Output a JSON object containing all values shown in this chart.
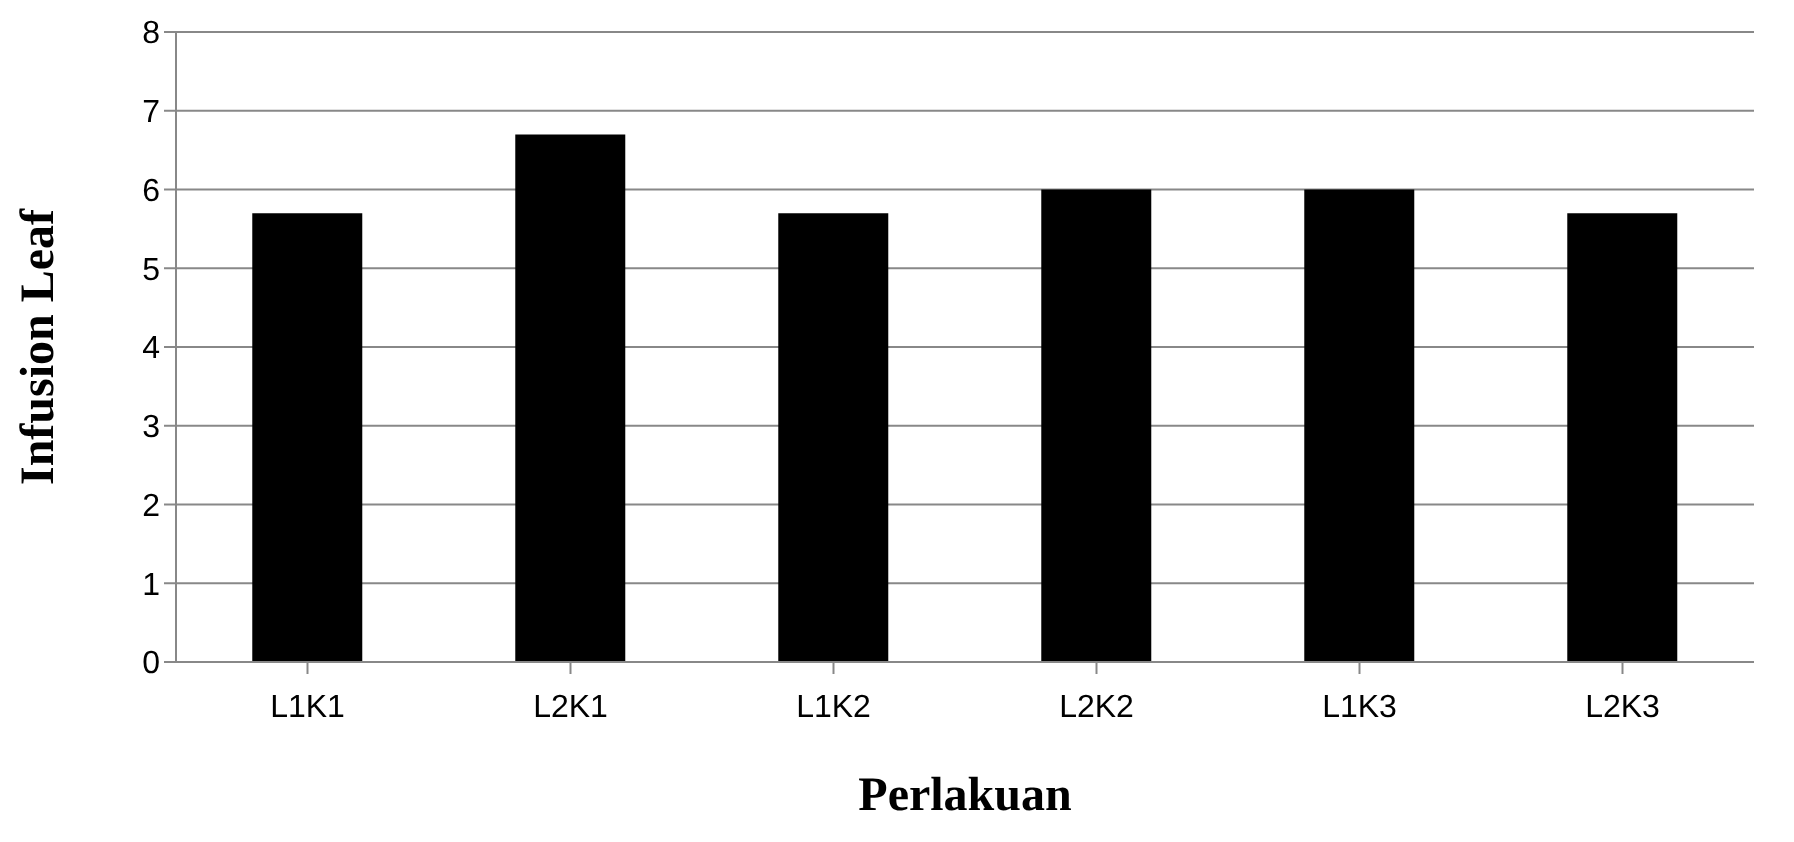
{
  "chart_data": {
    "type": "bar",
    "xlabel": "Perlakuan",
    "ylabel": "Infusion Leaf",
    "categories": [
      "L1K1",
      "L2K1",
      "L1K2",
      "L2K2",
      "L1K3",
      "L2K3"
    ],
    "values": [
      5.7,
      6.7,
      5.7,
      6,
      6,
      5.7
    ],
    "color": "#000000",
    "ylim": [
      0,
      8
    ],
    "yticks": [
      0,
      1,
      2,
      3,
      4,
      5,
      6,
      7,
      8
    ],
    "grid": "y"
  }
}
